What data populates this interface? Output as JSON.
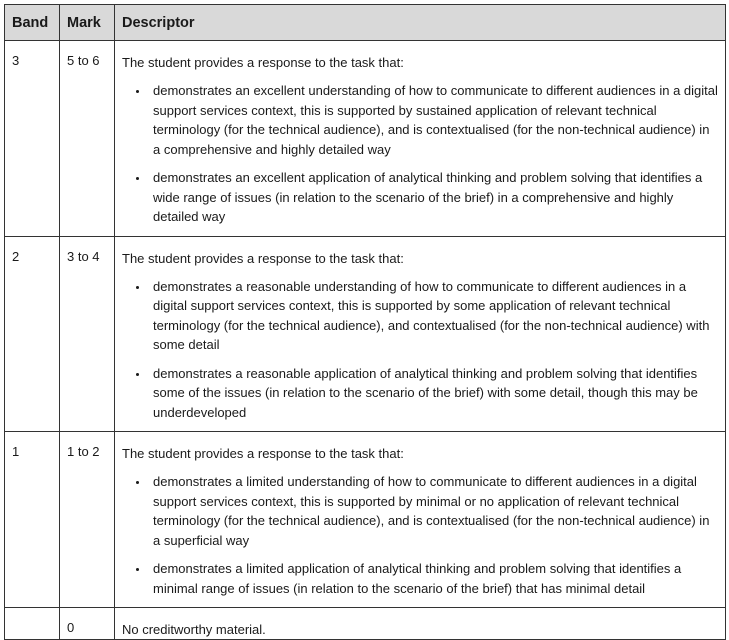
{
  "headers": {
    "band": "Band",
    "mark": "Mark",
    "descriptor": "Descriptor"
  },
  "rows": [
    {
      "band": "3",
      "mark": "5 to 6",
      "intro": "The student provides a response to the task that:",
      "bullets": [
        "demonstrates an excellent understanding of how to communicate to different audiences in a digital support services context, this is supported by sustained application of relevant technical terminology (for the technical audience), and is contextualised (for the non-technical audience) in a comprehensive and highly detailed way",
        "demonstrates an excellent application of analytical thinking and problem solving that identifies a wide range of issues (in relation to the scenario of the brief) in a comprehensive and highly detailed way"
      ]
    },
    {
      "band": "2",
      "mark": "3 to 4",
      "intro": "The student provides a response to the task that:",
      "bullets": [
        "demonstrates a reasonable understanding of how to communicate to different audiences in a digital support services context, this is supported by some application of relevant technical terminology (for the technical audience), and contextualised (for the non-technical audience) with some detail",
        "demonstrates a reasonable application of analytical thinking and problem solving that identifies some of the issues (in relation to the scenario of the brief) with some detail, though this may be underdeveloped"
      ]
    },
    {
      "band": "1",
      "mark": "1 to 2",
      "intro": "The student provides a response to the task that:",
      "bullets": [
        "demonstrates a limited understanding of how to communicate to different audiences in a digital support services context, this is supported by minimal or no application of relevant technical terminology (for the technical audience), and is contextualised (for the non-technical audience) in a superficial way",
        "demonstrates a limited application of analytical thinking and problem solving that identifies a minimal range of issues (in relation to the scenario of the brief) that has minimal detail"
      ]
    },
    {
      "band": "",
      "mark": "0",
      "intro": "No creditworthy material.",
      "bullets": []
    }
  ]
}
